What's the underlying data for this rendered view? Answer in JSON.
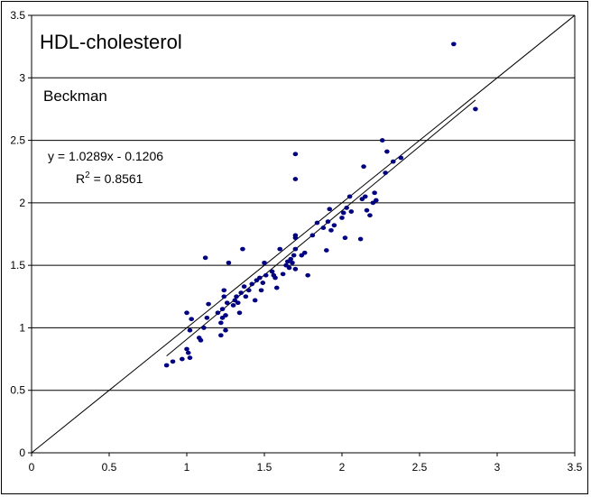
{
  "chart_data": {
    "type": "scatter",
    "title": "HDL-cholesterol",
    "subtitle": "Beckman",
    "xlim": [
      0,
      3.5
    ],
    "ylim": [
      0,
      3.5
    ],
    "x_ticks": [
      "0",
      "0.5",
      "1",
      "1.5",
      "2",
      "2.5",
      "3",
      "3.5"
    ],
    "y_ticks": [
      "0",
      "0.5",
      "1",
      "1.5",
      "2",
      "2.5",
      "3",
      "3.5"
    ],
    "grid": "horizontal",
    "point_color": "#000080",
    "line_color": "#000000",
    "regression": {
      "slope": 1.0289,
      "intercept": -0.1206,
      "x_range": [
        0.87,
        2.86
      ],
      "equation_text": "y = 1.0289x - 0.1206",
      "r2_label": "R",
      "r2_exponent": "2",
      "r2_value_text": " = 0.8561"
    },
    "identity_line": [
      [
        0,
        0
      ],
      [
        3.5,
        3.5
      ]
    ],
    "points": [
      [
        0.87,
        0.7
      ],
      [
        0.91,
        0.73
      ],
      [
        0.97,
        0.75
      ],
      [
        1.0,
        0.83
      ],
      [
        1.01,
        0.8
      ],
      [
        1.02,
        0.76
      ],
      [
        1.02,
        0.98
      ],
      [
        1.0,
        1.12
      ],
      [
        1.03,
        1.07
      ],
      [
        1.08,
        0.92
      ],
      [
        1.09,
        0.9
      ],
      [
        1.11,
        1.0
      ],
      [
        1.12,
        1.56
      ],
      [
        1.13,
        1.08
      ],
      [
        1.14,
        1.19
      ],
      [
        1.2,
        1.12
      ],
      [
        1.22,
        0.94
      ],
      [
        1.22,
        1.04
      ],
      [
        1.23,
        1.08
      ],
      [
        1.23,
        1.15
      ],
      [
        1.24,
        1.25
      ],
      [
        1.24,
        1.3
      ],
      [
        1.25,
        0.98
      ],
      [
        1.25,
        1.1
      ],
      [
        1.26,
        1.2
      ],
      [
        1.27,
        1.52
      ],
      [
        1.3,
        1.18
      ],
      [
        1.31,
        1.22
      ],
      [
        1.32,
        1.25
      ],
      [
        1.33,
        1.2
      ],
      [
        1.34,
        1.12
      ],
      [
        1.35,
        1.28
      ],
      [
        1.36,
        1.63
      ],
      [
        1.37,
        1.33
      ],
      [
        1.38,
        1.25
      ],
      [
        1.4,
        1.3
      ],
      [
        1.42,
        1.35
      ],
      [
        1.44,
        1.22
      ],
      [
        1.45,
        1.38
      ],
      [
        1.47,
        1.4
      ],
      [
        1.48,
        1.3
      ],
      [
        1.49,
        1.36
      ],
      [
        1.5,
        1.52
      ],
      [
        1.51,
        1.42
      ],
      [
        1.55,
        1.45
      ],
      [
        1.56,
        1.42
      ],
      [
        1.57,
        1.4
      ],
      [
        1.58,
        1.32
      ],
      [
        1.6,
        1.63
      ],
      [
        1.62,
        1.43
      ],
      [
        1.64,
        1.5
      ],
      [
        1.65,
        1.53
      ],
      [
        1.66,
        1.48
      ],
      [
        1.67,
        1.55
      ],
      [
        1.68,
        1.52
      ],
      [
        1.69,
        1.58
      ],
      [
        1.7,
        1.47
      ],
      [
        1.7,
        1.63
      ],
      [
        1.7,
        1.72
      ],
      [
        1.7,
        1.74
      ],
      [
        1.7,
        2.39
      ],
      [
        1.7,
        2.19
      ],
      [
        1.74,
        1.58
      ],
      [
        1.76,
        1.6
      ],
      [
        1.78,
        1.42
      ],
      [
        1.81,
        1.74
      ],
      [
        1.84,
        1.84
      ],
      [
        1.88,
        1.8
      ],
      [
        1.9,
        1.62
      ],
      [
        1.91,
        1.85
      ],
      [
        1.92,
        1.95
      ],
      [
        1.93,
        1.78
      ],
      [
        1.95,
        1.82
      ],
      [
        2.0,
        1.88
      ],
      [
        2.01,
        1.92
      ],
      [
        2.02,
        1.72
      ],
      [
        2.03,
        1.96
      ],
      [
        2.05,
        2.05
      ],
      [
        2.06,
        1.93
      ],
      [
        2.12,
        1.71
      ],
      [
        2.13,
        2.03
      ],
      [
        2.14,
        2.29
      ],
      [
        2.15,
        2.05
      ],
      [
        2.16,
        1.94
      ],
      [
        2.18,
        1.9
      ],
      [
        2.2,
        2.0
      ],
      [
        2.21,
        2.08
      ],
      [
        2.22,
        2.02
      ],
      [
        2.26,
        2.5
      ],
      [
        2.28,
        2.24
      ],
      [
        2.29,
        2.41
      ],
      [
        2.33,
        2.33
      ],
      [
        2.38,
        2.36
      ],
      [
        2.72,
        3.27
      ],
      [
        2.86,
        2.75
      ]
    ]
  }
}
